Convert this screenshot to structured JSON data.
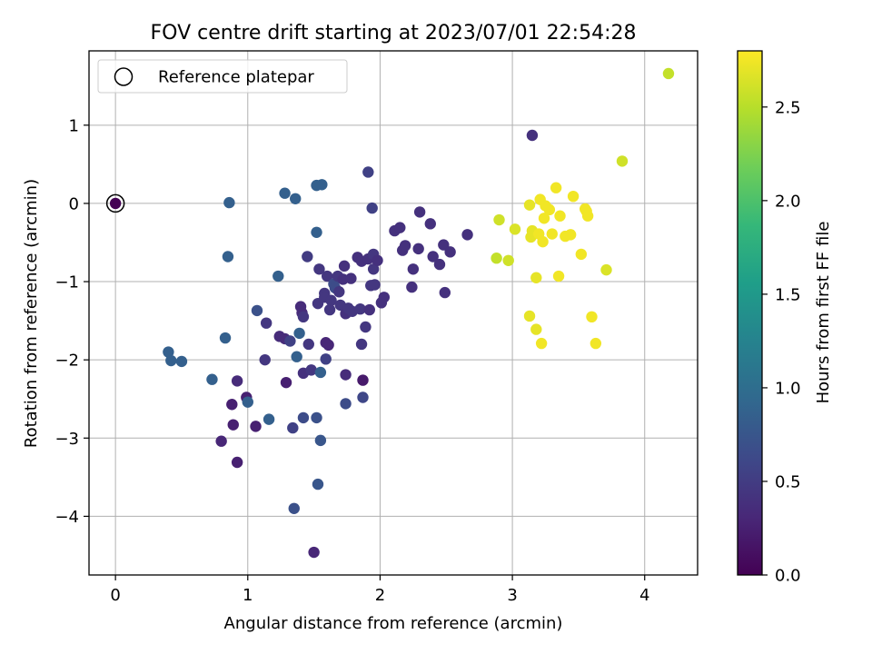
{
  "chart_data": {
    "type": "scatter",
    "title": "FOV centre drift starting at 2023/07/01 22:54:28",
    "xlabel": "Angular distance from reference (arcmin)",
    "ylabel": "Rotation from reference (arcmin)",
    "xlim": [
      -0.2,
      4.4
    ],
    "ylim": [
      -4.75,
      1.95
    ],
    "xticks": [
      0,
      1,
      2,
      3,
      4
    ],
    "yticks": [
      1,
      0,
      -1,
      -2,
      -3,
      -4
    ],
    "grid": true,
    "legend": {
      "placement": "top-left",
      "entries": [
        "Reference platepar"
      ]
    },
    "reference_point": {
      "x": 0,
      "y": 0,
      "c": 0.0
    },
    "colorbar": {
      "label": "Hours from first FF file",
      "colormap": "viridis",
      "range": [
        0.0,
        2.8
      ],
      "ticks": [
        0.0,
        0.5,
        1.0,
        1.5,
        2.0,
        2.5
      ],
      "tick_labels": [
        "0.0",
        "0.5",
        "1.0",
        "1.5",
        "2.0",
        "2.5"
      ],
      "colors": [
        "#440154",
        "#482878",
        "#3e4989",
        "#31688e",
        "#26828e",
        "#1f9e89",
        "#35b779",
        "#6ece58",
        "#b5de2b",
        "#fde725"
      ]
    },
    "points": [
      [
        0.0,
        0.0,
        0.0
      ],
      [
        0.86,
        0.01,
        0.85
      ],
      [
        1.28,
        0.13,
        0.85
      ],
      [
        1.36,
        0.06,
        0.85
      ],
      [
        1.52,
        0.23,
        0.85
      ],
      [
        1.56,
        0.24,
        0.85
      ],
      [
        0.85,
        -0.68,
        0.85
      ],
      [
        1.91,
        0.4,
        0.55
      ],
      [
        1.94,
        -0.06,
        0.55
      ],
      [
        1.52,
        -0.37,
        0.85
      ],
      [
        0.4,
        -1.9,
        0.85
      ],
      [
        0.42,
        -2.01,
        0.85
      ],
      [
        0.5,
        -2.02,
        0.85
      ],
      [
        0.73,
        -2.25,
        0.85
      ],
      [
        0.83,
        -1.72,
        0.85
      ],
      [
        0.8,
        -3.04,
        0.3
      ],
      [
        0.92,
        -3.31,
        0.25
      ],
      [
        0.88,
        -2.57,
        0.25
      ],
      [
        0.89,
        -2.83,
        0.25
      ],
      [
        0.92,
        -2.27,
        0.35
      ],
      [
        0.99,
        -2.48,
        0.25
      ],
      [
        1.0,
        -2.54,
        0.85
      ],
      [
        1.06,
        -2.85,
        0.25
      ],
      [
        1.07,
        -1.37,
        0.7
      ],
      [
        1.13,
        -2.0,
        0.45
      ],
      [
        1.14,
        -1.53,
        0.45
      ],
      [
        1.16,
        -2.76,
        0.85
      ],
      [
        1.23,
        -0.93,
        0.85
      ],
      [
        1.24,
        -1.7,
        0.35
      ],
      [
        1.28,
        -1.73,
        0.35
      ],
      [
        1.29,
        -2.29,
        0.25
      ],
      [
        1.32,
        -1.76,
        0.55
      ],
      [
        1.34,
        -2.87,
        0.55
      ],
      [
        1.35,
        -3.9,
        0.7
      ],
      [
        1.37,
        -1.96,
        0.85
      ],
      [
        1.39,
        -1.66,
        0.85
      ],
      [
        1.4,
        -1.32,
        0.35
      ],
      [
        1.41,
        -1.4,
        0.35
      ],
      [
        1.42,
        -1.45,
        0.45
      ],
      [
        1.42,
        -2.74,
        0.65
      ],
      [
        1.42,
        -2.17,
        0.4
      ],
      [
        1.45,
        -0.68,
        0.5
      ],
      [
        1.46,
        -1.8,
        0.45
      ],
      [
        1.48,
        -2.13,
        0.45
      ],
      [
        1.5,
        -4.46,
        0.3
      ],
      [
        1.52,
        -2.74,
        0.7
      ],
      [
        1.53,
        -1.28,
        0.45
      ],
      [
        1.53,
        -3.59,
        0.75
      ],
      [
        1.54,
        -0.84,
        0.45
      ],
      [
        1.55,
        -3.03,
        0.75
      ],
      [
        1.55,
        -2.16,
        0.85
      ],
      [
        1.58,
        -1.15,
        0.45
      ],
      [
        1.58,
        -1.2,
        0.45
      ],
      [
        1.59,
        -1.78,
        0.3
      ],
      [
        1.59,
        -1.99,
        0.55
      ],
      [
        1.6,
        -0.93,
        0.45
      ],
      [
        1.61,
        -1.81,
        0.3
      ],
      [
        1.62,
        -1.36,
        0.45
      ],
      [
        1.63,
        -1.24,
        0.45
      ],
      [
        1.65,
        -1.03,
        0.65
      ],
      [
        1.66,
        -1.08,
        0.65
      ],
      [
        1.68,
        -0.93,
        0.45
      ],
      [
        1.69,
        -1.13,
        0.45
      ],
      [
        1.7,
        -1.3,
        0.45
      ],
      [
        1.72,
        -0.97,
        0.4
      ],
      [
        1.73,
        -0.8,
        0.4
      ],
      [
        1.74,
        -1.41,
        0.4
      ],
      [
        1.74,
        -2.19,
        0.35
      ],
      [
        1.74,
        -2.56,
        0.65
      ],
      [
        1.76,
        -1.34,
        0.45
      ],
      [
        1.78,
        -0.96,
        0.4
      ],
      [
        1.79,
        -1.38,
        0.45
      ],
      [
        1.83,
        -0.69,
        0.4
      ],
      [
        1.85,
        -1.35,
        0.45
      ],
      [
        1.86,
        -0.74,
        0.4
      ],
      [
        1.86,
        -1.8,
        0.45
      ],
      [
        1.87,
        -2.26,
        0.2
      ],
      [
        1.87,
        -2.48,
        0.6
      ],
      [
        1.89,
        -1.58,
        0.45
      ],
      [
        1.91,
        -0.71,
        0.4
      ],
      [
        1.92,
        -1.36,
        0.4
      ],
      [
        1.93,
        -1.05,
        0.45
      ],
      [
        1.95,
        -0.65,
        0.45
      ],
      [
        1.95,
        -0.84,
        0.45
      ],
      [
        1.96,
        -1.04,
        0.45
      ],
      [
        1.98,
        -0.73,
        0.4
      ],
      [
        2.01,
        -1.27,
        0.4
      ],
      [
        2.03,
        -1.2,
        0.4
      ],
      [
        2.11,
        -0.35,
        0.4
      ],
      [
        2.15,
        -0.31,
        0.4
      ],
      [
        2.17,
        -0.6,
        0.4
      ],
      [
        2.19,
        -0.54,
        0.4
      ],
      [
        2.24,
        -1.07,
        0.4
      ],
      [
        2.25,
        -0.84,
        0.4
      ],
      [
        2.29,
        -0.58,
        0.4
      ],
      [
        2.3,
        -0.11,
        0.4
      ],
      [
        2.38,
        -0.26,
        0.4
      ],
      [
        2.4,
        -0.68,
        0.4
      ],
      [
        2.45,
        -0.78,
        0.4
      ],
      [
        2.48,
        -0.53,
        0.4
      ],
      [
        2.49,
        -1.14,
        0.4
      ],
      [
        2.53,
        -0.62,
        0.4
      ],
      [
        2.66,
        -0.4,
        0.4
      ],
      [
        3.15,
        0.87,
        0.4
      ],
      [
        2.88,
        -0.7,
        2.55
      ],
      [
        2.9,
        -0.21,
        2.6
      ],
      [
        2.97,
        -0.73,
        2.6
      ],
      [
        3.02,
        -0.33,
        2.65
      ],
      [
        3.13,
        -0.02,
        2.7
      ],
      [
        3.13,
        -1.44,
        2.7
      ],
      [
        3.14,
        -0.43,
        2.7
      ],
      [
        3.15,
        -0.35,
        2.7
      ],
      [
        3.18,
        -1.61,
        2.7
      ],
      [
        3.18,
        -0.95,
        2.7
      ],
      [
        3.2,
        -0.39,
        2.75
      ],
      [
        3.21,
        0.05,
        2.75
      ],
      [
        3.22,
        -1.79,
        2.75
      ],
      [
        3.23,
        -0.49,
        2.75
      ],
      [
        3.24,
        -0.19,
        2.75
      ],
      [
        3.25,
        -0.03,
        2.75
      ],
      [
        3.28,
        -0.08,
        2.75
      ],
      [
        3.3,
        -0.39,
        2.75
      ],
      [
        3.33,
        0.2,
        2.75
      ],
      [
        3.35,
        -0.93,
        2.75
      ],
      [
        3.36,
        -0.16,
        2.75
      ],
      [
        3.4,
        -0.42,
        2.75
      ],
      [
        3.44,
        -0.4,
        2.75
      ],
      [
        3.46,
        0.09,
        2.75
      ],
      [
        3.52,
        -0.65,
        2.75
      ],
      [
        3.55,
        -0.07,
        2.75
      ],
      [
        3.56,
        -0.1,
        2.75
      ],
      [
        3.57,
        -0.16,
        2.75
      ],
      [
        3.6,
        -1.45,
        2.75
      ],
      [
        3.63,
        -1.79,
        2.75
      ],
      [
        3.71,
        -0.85,
        2.65
      ],
      [
        3.83,
        0.54,
        2.6
      ],
      [
        4.18,
        1.66,
        2.55
      ]
    ]
  }
}
